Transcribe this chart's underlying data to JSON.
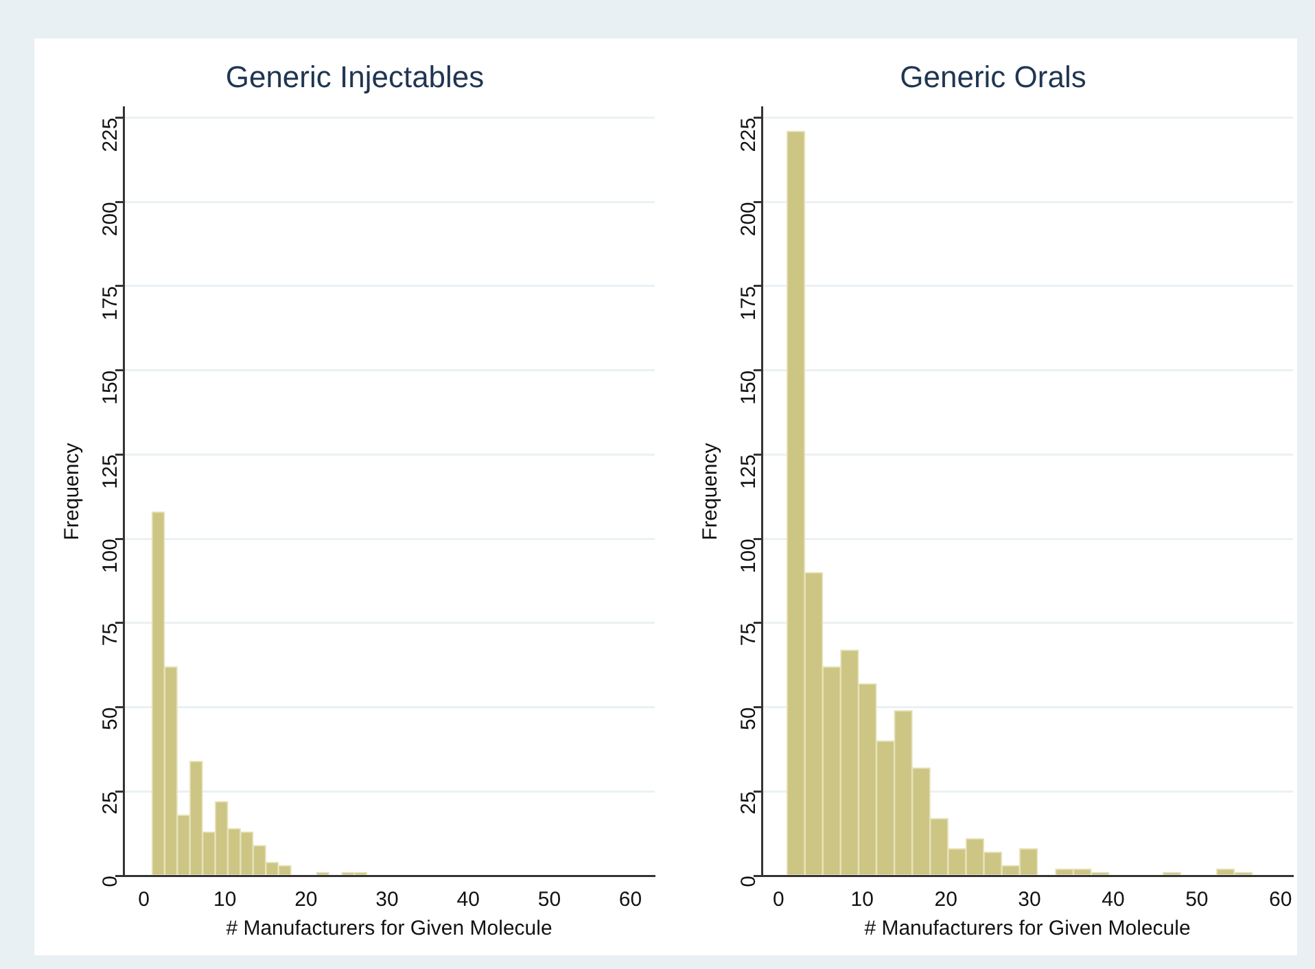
{
  "chart_data": [
    {
      "type": "histogram",
      "title": "Generic Injectables",
      "xlabel": "# Manufacturers for Given Molecule",
      "ylabel": "Frequency",
      "color": "#cdc584",
      "bins": [
        1,
        2.56,
        4.12,
        5.68,
        7.24,
        8.8,
        10.36,
        11.92,
        13.48,
        15.04,
        16.6,
        18.16,
        19.72,
        21.28,
        22.84,
        24.4,
        25.96,
        27.52
      ],
      "values": [
        108,
        62,
        18,
        34,
        13,
        22,
        14,
        13,
        9,
        4,
        3,
        0,
        0,
        1,
        0,
        1,
        1
      ],
      "xlim": [
        -2.5,
        63
      ],
      "xticks": [
        0,
        10,
        20,
        30,
        40,
        50,
        60
      ],
      "ylim": [
        0,
        228
      ],
      "yticks": [
        0,
        25,
        50,
        75,
        100,
        125,
        150,
        175,
        200,
        225
      ],
      "grid": "y"
    },
    {
      "type": "histogram",
      "title": "Generic Orals",
      "xlabel": "# Manufacturers for Given Molecule",
      "ylabel": "Frequency",
      "color": "#cdc584",
      "bins": [
        1,
        3.14,
        5.28,
        7.42,
        9.56,
        11.7,
        13.84,
        15.98,
        18.12,
        20.26,
        22.4,
        24.54,
        26.68,
        28.82,
        30.96,
        33.1,
        35.24,
        37.38,
        39.52,
        41.66,
        43.8,
        45.94,
        48.08,
        50.22,
        52.36,
        54.5,
        56.64
      ],
      "values": [
        221,
        90,
        62,
        67,
        57,
        40,
        49,
        32,
        17,
        8,
        11,
        7,
        3,
        8,
        0,
        2,
        2,
        1,
        0,
        0,
        0,
        1,
        0,
        0,
        2,
        1
      ],
      "xlim": [
        -2,
        61.5
      ],
      "xticks": [
        0,
        10,
        20,
        30,
        40,
        50,
        60
      ],
      "ylim": [
        0,
        228
      ],
      "yticks": [
        0,
        25,
        50,
        75,
        100,
        125,
        150,
        175,
        200,
        225
      ],
      "grid": "y"
    }
  ]
}
